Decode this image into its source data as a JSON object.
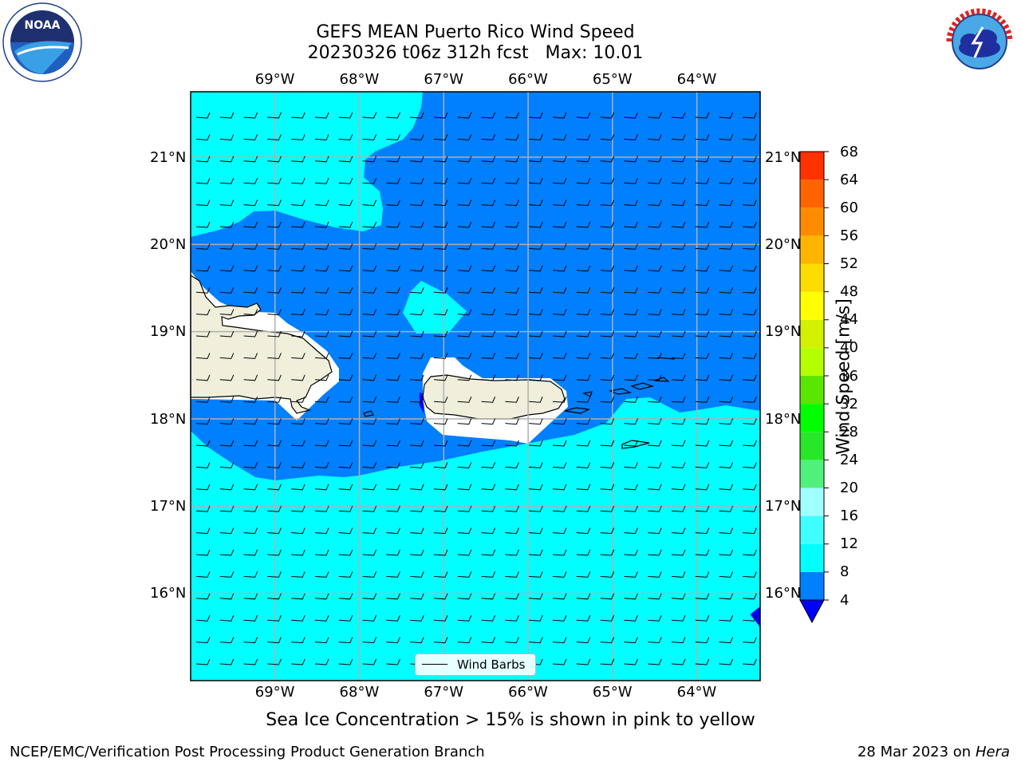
{
  "header": {
    "title_line1": "GEFS MEAN Puerto Rico Wind Speed",
    "title_line2": "20230326 t06z 312h fcst   Max: 10.01"
  },
  "logos": {
    "left_text": "NOAA",
    "right_text": "NATIONAL WEATHER SERVICE"
  },
  "map": {
    "lon_ticks": [
      "69°W",
      "68°W",
      "67°W",
      "66°W",
      "65°W",
      "64°W"
    ],
    "lat_ticks": [
      "21°N",
      "20°N",
      "19°N",
      "18°N",
      "17°N",
      "16°N"
    ],
    "lon_values": [
      -69,
      -68,
      -67,
      -66,
      -65,
      -64
    ],
    "lat_values": [
      21,
      20,
      19,
      18,
      17,
      16
    ],
    "extent": {
      "lon_min": -70,
      "lon_max": -63.25,
      "lat_min": 15,
      "lat_max": 21.75
    },
    "colors": {
      "band_4_8": "#007fff",
      "band_8_12": "#00ffff",
      "land": "#efefdc",
      "below_4": "#0000ff",
      "grid": "#b0b0b0",
      "coast": "#000000"
    },
    "wind_direction": "easterly",
    "legend_label": "Wind Barbs"
  },
  "colorbar": {
    "label": "Wind Speed [m/s]",
    "ticks": [
      "68",
      "64",
      "60",
      "56",
      "52",
      "48",
      "44",
      "40",
      "36",
      "32",
      "28",
      "24",
      "20",
      "16",
      "12",
      "8",
      "4"
    ],
    "levels": [
      4,
      8,
      12,
      16,
      20,
      24,
      28,
      32,
      36,
      40,
      44,
      48,
      52,
      56,
      60,
      64,
      68
    ],
    "colors": [
      "#007fff",
      "#00ffff",
      "#40ffff",
      "#a0ffff",
      "#50f07a",
      "#28e628",
      "#00ff00",
      "#5ae600",
      "#b4ff00",
      "#d2f000",
      "#ffff00",
      "#ffdc00",
      "#ffb400",
      "#ff8c00",
      "#ff6400",
      "#ff3200"
    ],
    "under_color": "#0000ff"
  },
  "footer": {
    "note": "Sea Ice Concentration > 15% is shown in pink to yellow",
    "branch": "NCEP/EMC/Verification Post Processing Product Generation Branch",
    "date": "28 Mar 2023 on",
    "machine": "Hera"
  }
}
